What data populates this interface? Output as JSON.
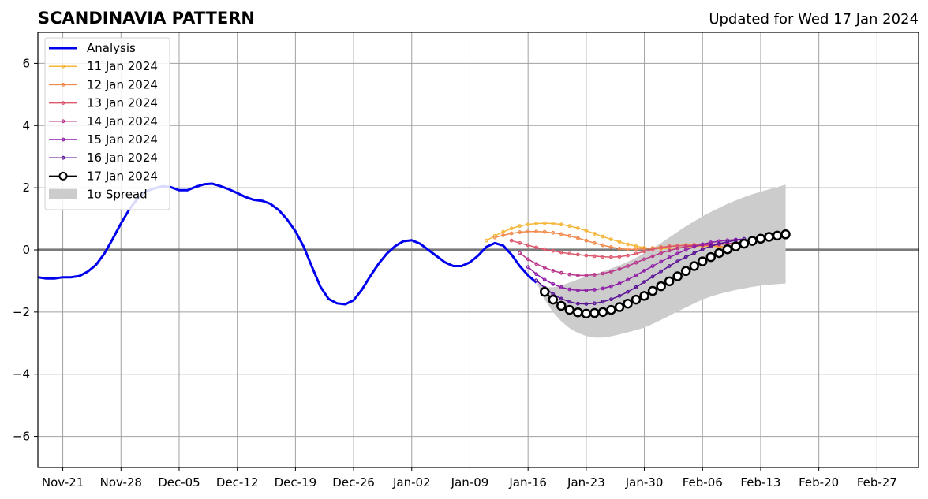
{
  "header": {
    "title": "SCANDINAVIA PATTERN",
    "updated": "Updated for Wed 17 Jan 2024"
  },
  "chart_data": {
    "type": "line",
    "x_unit": "date",
    "xlim": [
      "2023-11-18",
      "2024-03-03"
    ],
    "ylim": [
      -7,
      7
    ],
    "grid": true,
    "legend_position": "top-left",
    "x_ticks": [
      {
        "date": "2023-11-21",
        "label": "Nov-21"
      },
      {
        "date": "2023-11-28",
        "label": "Nov-28"
      },
      {
        "date": "2023-12-05",
        "label": "Dec-05"
      },
      {
        "date": "2023-12-12",
        "label": "Dec-12"
      },
      {
        "date": "2023-12-19",
        "label": "Dec-19"
      },
      {
        "date": "2023-12-26",
        "label": "Dec-26"
      },
      {
        "date": "2024-01-02",
        "label": "Jan-02"
      },
      {
        "date": "2024-01-09",
        "label": "Jan-09"
      },
      {
        "date": "2024-01-16",
        "label": "Jan-16"
      },
      {
        "date": "2024-01-23",
        "label": "Jan-23"
      },
      {
        "date": "2024-01-30",
        "label": "Jan-30"
      },
      {
        "date": "2024-02-06",
        "label": "Feb-06"
      },
      {
        "date": "2024-02-13",
        "label": "Feb-13"
      },
      {
        "date": "2024-02-20",
        "label": "Feb-20"
      },
      {
        "date": "2024-02-27",
        "label": "Feb-27"
      }
    ],
    "y_ticks": [
      {
        "value": -6,
        "label": "−6"
      },
      {
        "value": -4,
        "label": "−4"
      },
      {
        "value": -2,
        "label": "−2"
      },
      {
        "value": 0,
        "label": "0"
      },
      {
        "value": 2,
        "label": "2"
      },
      {
        "value": 4,
        "label": "4"
      },
      {
        "value": 6,
        "label": "6"
      }
    ],
    "analysis": {
      "name": "Analysis",
      "color": "#0000ee",
      "points": [
        [
          "2023-11-18",
          -0.88
        ],
        [
          "2023-11-19",
          -0.92
        ],
        [
          "2023-11-20",
          -0.92
        ],
        [
          "2023-11-21",
          -0.88
        ],
        [
          "2023-11-22",
          -0.88
        ],
        [
          "2023-11-23",
          -0.84
        ],
        [
          "2023-11-24",
          -0.7
        ],
        [
          "2023-11-25",
          -0.48
        ],
        [
          "2023-11-26",
          -0.12
        ],
        [
          "2023-11-27",
          0.35
        ],
        [
          "2023-11-28",
          0.85
        ],
        [
          "2023-11-29",
          1.3
        ],
        [
          "2023-11-30",
          1.65
        ],
        [
          "2023-12-01",
          1.88
        ],
        [
          "2023-12-02",
          1.98
        ],
        [
          "2023-12-03",
          2.05
        ],
        [
          "2023-12-04",
          2.02
        ],
        [
          "2023-12-05",
          1.92
        ],
        [
          "2023-12-06",
          1.92
        ],
        [
          "2023-12-07",
          2.03
        ],
        [
          "2023-12-08",
          2.11
        ],
        [
          "2023-12-09",
          2.13
        ],
        [
          "2023-12-10",
          2.05
        ],
        [
          "2023-12-11",
          1.95
        ],
        [
          "2023-12-12",
          1.83
        ],
        [
          "2023-12-13",
          1.7
        ],
        [
          "2023-12-14",
          1.61
        ],
        [
          "2023-12-15",
          1.58
        ],
        [
          "2023-12-16",
          1.48
        ],
        [
          "2023-12-17",
          1.28
        ],
        [
          "2023-12-18",
          0.98
        ],
        [
          "2023-12-19",
          0.6
        ],
        [
          "2023-12-20",
          0.1
        ],
        [
          "2023-12-21",
          -0.55
        ],
        [
          "2023-12-22",
          -1.18
        ],
        [
          "2023-12-23",
          -1.58
        ],
        [
          "2023-12-24",
          -1.72
        ],
        [
          "2023-12-25",
          -1.75
        ],
        [
          "2023-12-26",
          -1.62
        ],
        [
          "2023-12-27",
          -1.28
        ],
        [
          "2023-12-28",
          -0.85
        ],
        [
          "2023-12-29",
          -0.45
        ],
        [
          "2023-12-30",
          -0.12
        ],
        [
          "2023-12-31",
          0.12
        ],
        [
          "2024-01-01",
          0.28
        ],
        [
          "2024-01-02",
          0.31
        ],
        [
          "2024-01-03",
          0.2
        ],
        [
          "2024-01-04",
          0.0
        ],
        [
          "2024-01-05",
          -0.2
        ],
        [
          "2024-01-06",
          -0.4
        ],
        [
          "2024-01-07",
          -0.52
        ],
        [
          "2024-01-08",
          -0.52
        ],
        [
          "2024-01-09",
          -0.4
        ],
        [
          "2024-01-10",
          -0.18
        ],
        [
          "2024-01-11",
          0.1
        ],
        [
          "2024-01-12",
          0.22
        ],
        [
          "2024-01-13",
          0.14
        ],
        [
          "2024-01-14",
          -0.15
        ],
        [
          "2024-01-15",
          -0.52
        ],
        [
          "2024-01-16",
          -0.82
        ],
        [
          "2024-01-17",
          -1.05
        ]
      ]
    },
    "spread": {
      "name": "1σ Spread",
      "color": "#cccccc",
      "dates": [
        "2024-01-17",
        "2024-01-18",
        "2024-01-19",
        "2024-01-20",
        "2024-01-21",
        "2024-01-22",
        "2024-01-23",
        "2024-01-24",
        "2024-01-25",
        "2024-01-26",
        "2024-01-27",
        "2024-01-28",
        "2024-01-29",
        "2024-01-30",
        "2024-01-31",
        "2024-02-01",
        "2024-02-02",
        "2024-02-03",
        "2024-02-04",
        "2024-02-05",
        "2024-02-06",
        "2024-02-07",
        "2024-02-08",
        "2024-02-09",
        "2024-02-10",
        "2024-02-11",
        "2024-02-12",
        "2024-02-13",
        "2024-02-14",
        "2024-02-15",
        "2024-02-16"
      ],
      "upper": [
        -1.05,
        -1.2,
        -1.2,
        -1.15,
        -1.05,
        -0.95,
        -0.85,
        -0.78,
        -0.7,
        -0.6,
        -0.5,
        -0.38,
        -0.25,
        -0.1,
        0.05,
        0.22,
        0.4,
        0.58,
        0.76,
        0.92,
        1.08,
        1.22,
        1.35,
        1.48,
        1.59,
        1.7,
        1.79,
        1.87,
        1.95,
        2.02,
        2.1
      ],
      "lower": [
        -1.05,
        -1.6,
        -2.0,
        -2.3,
        -2.52,
        -2.67,
        -2.77,
        -2.82,
        -2.82,
        -2.78,
        -2.72,
        -2.65,
        -2.58,
        -2.5,
        -2.38,
        -2.25,
        -2.12,
        -1.98,
        -1.85,
        -1.72,
        -1.6,
        -1.5,
        -1.42,
        -1.35,
        -1.29,
        -1.24,
        -1.19,
        -1.15,
        -1.12,
        -1.1,
        -1.08
      ]
    },
    "forecasts": [
      {
        "name": "11 Jan 2024",
        "color": "#f5b73a",
        "start": "2024-01-11",
        "values": [
          0.3,
          0.45,
          0.58,
          0.69,
          0.77,
          0.82,
          0.85,
          0.86,
          0.85,
          0.82,
          0.77,
          0.7,
          0.62,
          0.52,
          0.43,
          0.34,
          0.26,
          0.18,
          0.12,
          0.07,
          0.04,
          0.04,
          0.05,
          0.07,
          0.09,
          0.11,
          0.12,
          0.12,
          0.1,
          0.06,
          0.0
        ]
      },
      {
        "name": "12 Jan 2024",
        "color": "#ef8a4c",
        "start": "2024-01-12",
        "values": [
          0.4,
          0.47,
          0.53,
          0.57,
          0.59,
          0.59,
          0.58,
          0.55,
          0.51,
          0.45,
          0.38,
          0.3,
          0.22,
          0.15,
          0.09,
          0.04,
          0.02,
          0.02,
          0.04,
          0.06,
          0.09,
          0.12,
          0.14,
          0.16,
          0.17,
          0.17,
          0.15,
          0.12,
          0.08,
          0.02
        ]
      },
      {
        "name": "13 Jan 2024",
        "color": "#dd5a6e",
        "start": "2024-01-14",
        "values": [
          0.3,
          0.22,
          0.15,
          0.08,
          0.02,
          -0.03,
          -0.08,
          -0.12,
          -0.15,
          -0.18,
          -0.2,
          -0.22,
          -0.23,
          -0.22,
          -0.18,
          -0.12,
          -0.05,
          0.02,
          0.07,
          0.11,
          0.13,
          0.14,
          0.14,
          0.14,
          0.15,
          0.17,
          0.2,
          0.23,
          0.25
        ]
      },
      {
        "name": "14 Jan 2024",
        "color": "#b8368c",
        "start": "2024-01-15",
        "values": [
          -0.1,
          -0.3,
          -0.45,
          -0.57,
          -0.67,
          -0.74,
          -0.79,
          -0.82,
          -0.82,
          -0.8,
          -0.76,
          -0.7,
          -0.62,
          -0.52,
          -0.41,
          -0.3,
          -0.2,
          -0.1,
          -0.02,
          0.05,
          0.1,
          0.14,
          0.16,
          0.18,
          0.19,
          0.2,
          0.21,
          0.23
        ]
      },
      {
        "name": "15 Jan 2024",
        "color": "#8e1da8",
        "start": "2024-01-16",
        "values": [
          -0.55,
          -0.78,
          -0.96,
          -1.1,
          -1.2,
          -1.27,
          -1.3,
          -1.3,
          -1.28,
          -1.24,
          -1.17,
          -1.08,
          -0.96,
          -0.82,
          -0.67,
          -0.52,
          -0.38,
          -0.24,
          -0.12,
          0.0,
          0.1,
          0.18,
          0.24,
          0.28,
          0.31,
          0.33,
          0.35
        ]
      },
      {
        "name": "16 Jan 2024",
        "color": "#5a1296",
        "start": "2024-01-17",
        "values": [
          -0.98,
          -1.22,
          -1.42,
          -1.57,
          -1.67,
          -1.73,
          -1.74,
          -1.72,
          -1.67,
          -1.59,
          -1.48,
          -1.35,
          -1.2,
          -1.03,
          -0.86,
          -0.69,
          -0.52,
          -0.37,
          -0.23,
          -0.1,
          0.02,
          0.12,
          0.2,
          0.26,
          0.31,
          0.35
        ]
      },
      {
        "name": "17 Jan 2024",
        "color": "#000000",
        "start": "2024-01-18",
        "values": [
          -1.35,
          -1.6,
          -1.8,
          -1.93,
          -2.01,
          -2.05,
          -2.03,
          -2.0,
          -1.93,
          -1.84,
          -1.73,
          -1.6,
          -1.48,
          -1.32,
          -1.17,
          -1.01,
          -0.85,
          -0.68,
          -0.52,
          -0.37,
          -0.23,
          -0.1,
          0.02,
          0.11,
          0.2,
          0.29,
          0.36,
          0.42,
          0.46,
          0.5
        ]
      }
    ],
    "legend": [
      "Analysis",
      "11 Jan 2024",
      "12 Jan 2024",
      "13 Jan 2024",
      "14 Jan 2024",
      "15 Jan 2024",
      "16 Jan 2024",
      "17 Jan 2024",
      "1σ Spread"
    ]
  }
}
